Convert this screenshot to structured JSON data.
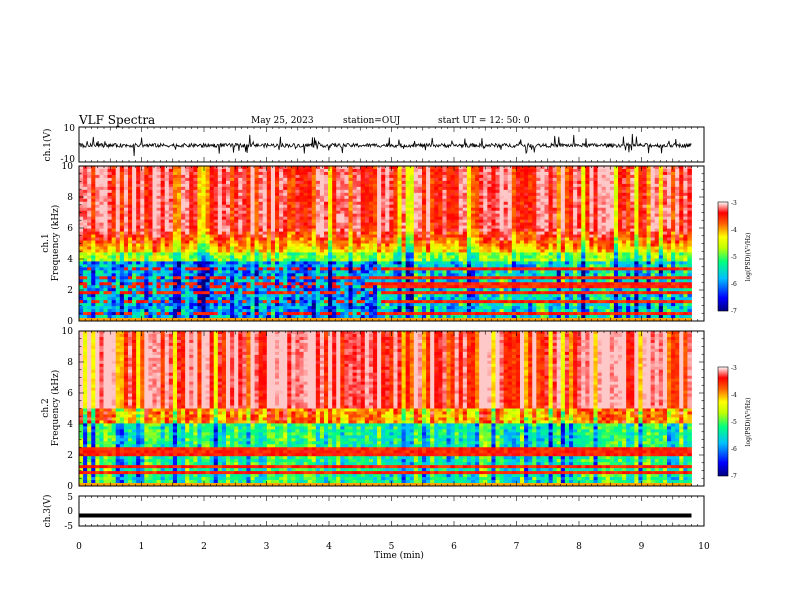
{
  "header": {
    "title": "VLF Spectra",
    "date": "May 25, 2023",
    "station": "station=OUJ",
    "start": "start  UT =   12: 50: 0"
  },
  "chart_data": [
    {
      "type": "line",
      "name": "ch1-waveform",
      "ylabel": "ch.1(V)",
      "ylim": [
        -10,
        10
      ],
      "yticks": [
        "10",
        "-10"
      ],
      "xlim": [
        0,
        10
      ]
    },
    {
      "type": "heatmap",
      "name": "ch1-spectrogram",
      "ylabel": "ch.1\nFrequency (kHz)",
      "ylim": [
        0,
        10
      ],
      "yticks": [
        "0",
        "2",
        "4",
        "6",
        "8",
        "10"
      ],
      "xlim": [
        0,
        10
      ],
      "data_end_min": 9.8,
      "colorbar": {
        "label": "log(PSD)(V²/Hz)",
        "range": [
          -7,
          -3
        ],
        "ticks": [
          "-3",
          "-4",
          "-5",
          "-6",
          "-7"
        ]
      },
      "tonal_lines_khz": [
        0.5,
        1.2,
        1.8,
        2.3,
        2.8,
        3.3
      ]
    },
    {
      "type": "heatmap",
      "name": "ch2-spectrogram",
      "ylabel": "ch.2\nFrequency (kHz)",
      "ylim": [
        0,
        10
      ],
      "yticks": [
        "0",
        "2",
        "4",
        "6",
        "8",
        "10"
      ],
      "xlim": [
        0,
        10
      ],
      "data_end_min": 9.8,
      "colorbar": {
        "label": "log(PSD)(V²/Hz)",
        "range": [
          -7,
          -3
        ],
        "ticks": [
          "-3",
          "-4",
          "-5",
          "-6",
          "-7"
        ]
      },
      "tonal_lines_khz": [
        0.8,
        1.3,
        2.0,
        2.3
      ]
    },
    {
      "type": "line",
      "name": "ch3-waveform",
      "ylabel": "ch.3(V)",
      "ylim": [
        -5,
        5
      ],
      "yticks": [
        "5",
        "0",
        "-5"
      ],
      "value_v": -1.5,
      "xlim": [
        0,
        10
      ]
    }
  ],
  "xaxis": {
    "label": "Time (min)",
    "ticks": [
      "0",
      "1",
      "2",
      "3",
      "4",
      "5",
      "6",
      "7",
      "8",
      "9",
      "10"
    ]
  },
  "colors": {
    "jet": [
      "#00007f",
      "#0000ff",
      "#0080ff",
      "#00ffff",
      "#80ff80",
      "#ffff00",
      "#ff8000",
      "#ff0000",
      "#ffb0b0",
      "#ffffff"
    ]
  }
}
